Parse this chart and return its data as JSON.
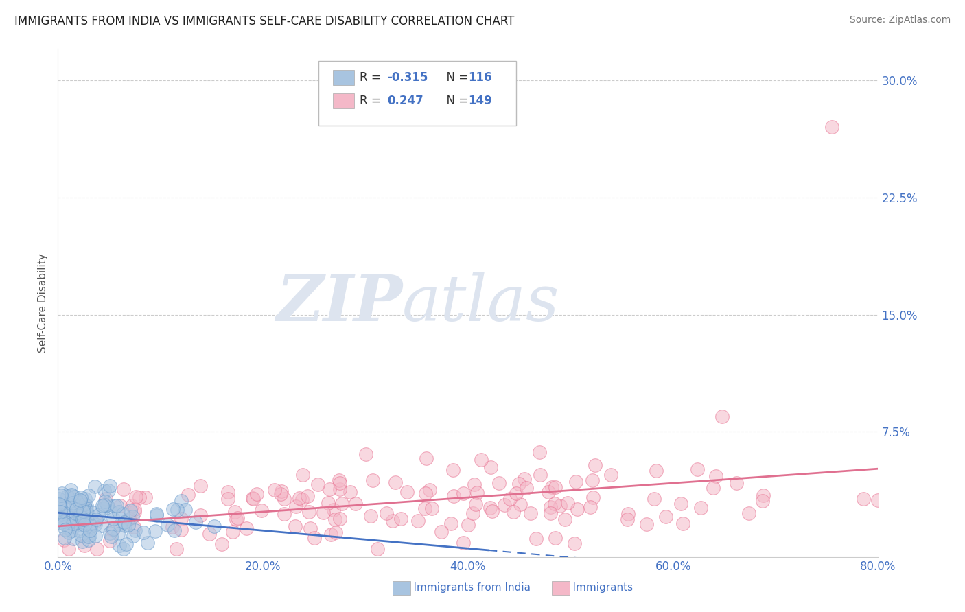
{
  "title": "IMMIGRANTS FROM INDIA VS IMMIGRANTS SELF-CARE DISABILITY CORRELATION CHART",
  "source": "Source: ZipAtlas.com",
  "ylabel": "Self-Care Disability",
  "r1": -0.315,
  "n1": 116,
  "r2": 0.247,
  "n2": 149,
  "color1": "#a8c4e0",
  "color1_edge": "#6699cc",
  "color2": "#f4b8c8",
  "color2_edge": "#e87090",
  "trend1_color": "#4472c4",
  "trend2_color": "#e07090",
  "axis_color": "#4472c4",
  "background_color": "#ffffff",
  "watermark_color": "#dde4ef",
  "legend1_label": "Immigrants from India",
  "legend2_label": "Immigrants",
  "xlim": [
    0.0,
    0.8
  ],
  "ylim": [
    -0.005,
    0.32
  ],
  "yticks": [
    0.075,
    0.15,
    0.225,
    0.3
  ],
  "ytick_labels": [
    "7.5%",
    "15.0%",
    "22.5%",
    "30.0%"
  ],
  "xticks": [
    0.0,
    0.2,
    0.4,
    0.6,
    0.8
  ],
  "xtick_labels": [
    "0.0%",
    "20.0%",
    "40.0%",
    "60.0%",
    "80.0%"
  ]
}
